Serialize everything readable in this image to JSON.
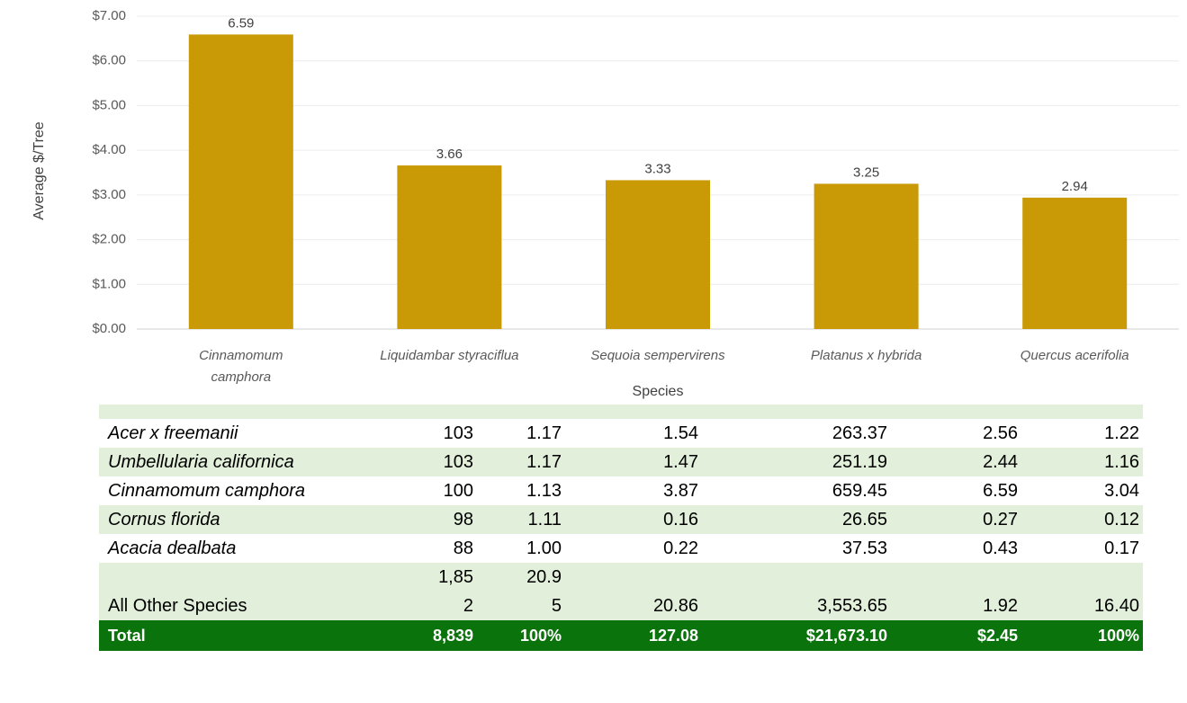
{
  "chart_data": {
    "type": "bar",
    "y_axis_label": "Average $/Tree",
    "x_axis_label": "Species",
    "categories": [
      "Cinnamomum camphora",
      "Liquidambar styraciflua",
      "Sequoia sempervirens",
      "Platanus x hybrida",
      "Quercus acerifolia"
    ],
    "values": [
      6.59,
      3.66,
      3.33,
      3.25,
      2.94
    ],
    "color": "#c99a06",
    "ylim": [
      0,
      7
    ],
    "yticks": [
      {
        "value": 0,
        "label": "$0.00"
      },
      {
        "value": 1,
        "label": "$1.00"
      },
      {
        "value": 2,
        "label": "$2.00"
      },
      {
        "value": 3,
        "label": "$3.00"
      },
      {
        "value": 4,
        "label": "$4.00"
      },
      {
        "value": 5,
        "label": "$5.00"
      },
      {
        "value": 6,
        "label": "$6.00"
      },
      {
        "value": 7,
        "label": "$7.00"
      }
    ],
    "grid": true
  },
  "table": {
    "rows": [
      [
        "Acer x freemanii",
        "103",
        "1.17",
        "1.54",
        "263.37",
        "2.56",
        "1.22"
      ],
      [
        "Umbellularia californica",
        "103",
        "1.17",
        "1.47",
        "251.19",
        "2.44",
        "1.16"
      ],
      [
        "Cinnamomum camphora",
        "100",
        "1.13",
        "3.87",
        "659.45",
        "6.59",
        "3.04"
      ],
      [
        "Cornus florida",
        "98",
        "1.11",
        "0.16",
        "26.65",
        "0.27",
        "0.12"
      ],
      [
        "Acacia dealbata",
        "88",
        "1.00",
        "0.22",
        "37.53",
        "0.43",
        "0.17"
      ],
      [
        "All Other Species",
        "1,852",
        "20.95",
        "20.86",
        "3,553.65",
        "1.92",
        "16.40"
      ]
    ],
    "total": [
      "Total",
      "8,839",
      "100%",
      "127.08",
      "$21,673.10",
      "$2.45",
      "100%"
    ]
  }
}
